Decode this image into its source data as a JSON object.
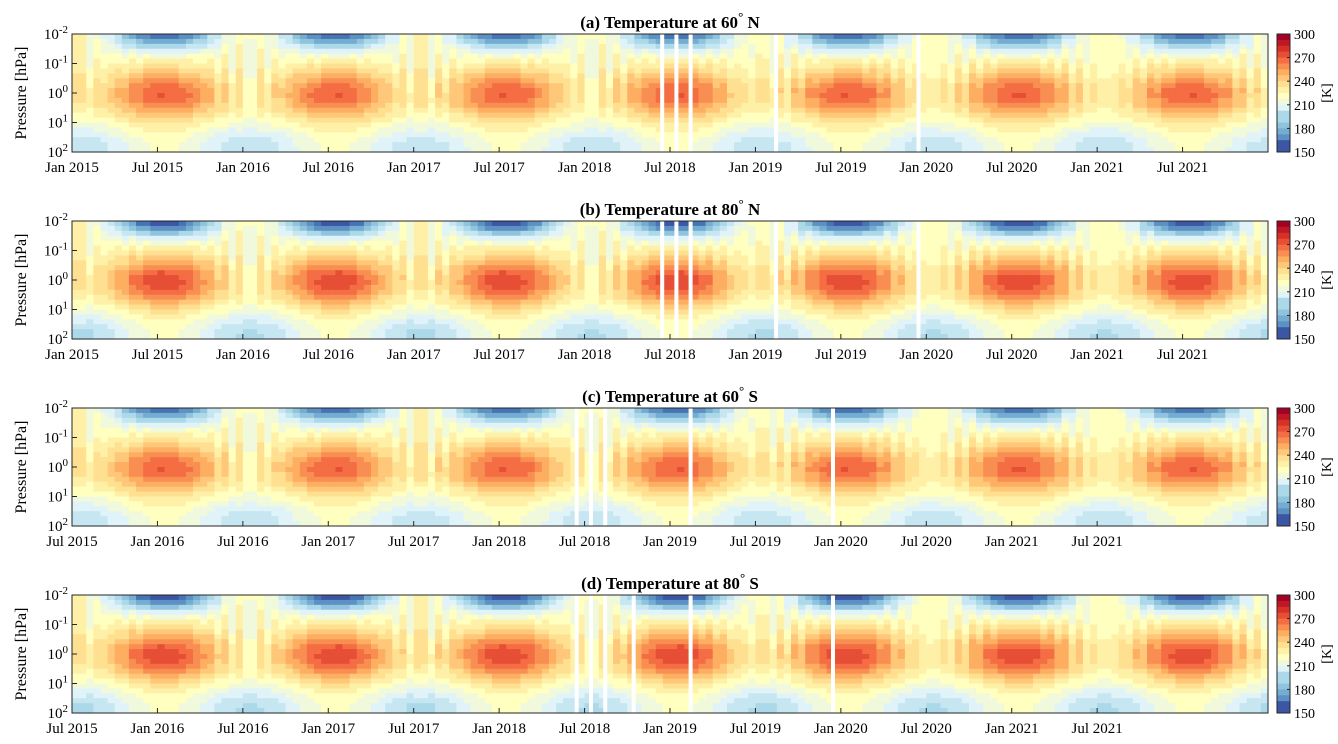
{
  "figure": {
    "colormap": [
      "#313695",
      "#4575b4",
      "#74add1",
      "#abd9e9",
      "#e0f3f8",
      "#ffffbf",
      "#fee090",
      "#fdae61",
      "#f46d43",
      "#d73027",
      "#a50026"
    ],
    "gap_color": "#ffffff"
  },
  "chart_data": [
    {
      "type": "heatmap",
      "panel": "a",
      "title": "(a) Temperature at 60° N",
      "title_parts": [
        "(a) Temperature at 60",
        "°",
        " N"
      ],
      "ylabel": "Pressure [hPa]",
      "yscale": "log",
      "yticks": [
        {
          "base": "10",
          "exp": "-2",
          "value": 0.01
        },
        {
          "base": "10",
          "exp": "-1",
          "value": 0.1
        },
        {
          "base": "10",
          "exp": "0",
          "value": 1
        },
        {
          "base": "10",
          "exp": "1",
          "value": 10
        },
        {
          "base": "10",
          "exp": "2",
          "value": 100
        }
      ],
      "x_start": "Jan 2015",
      "x_end": "Dec 2021",
      "xticks": [
        "Jan 2015",
        "Jul 2015",
        "Jan 2016",
        "Jul 2016",
        "Jan 2017",
        "Jul 2017",
        "Jan 2018",
        "Jul 2018",
        "Jan 2019",
        "Jul 2019",
        "Jan 2020",
        "Jul 2020",
        "Jan 2021",
        "Jul 2021"
      ],
      "colorbar": {
        "label": "[K]",
        "ticks": [
          "300",
          "270",
          "240",
          "210",
          "180",
          "150"
        ],
        "range": [
          150,
          300
        ]
      },
      "hemisphere": "north",
      "latitude": 60,
      "summer_peak_months": [
        "Jul 2015",
        "Jul 2016",
        "Jul 2017",
        "Jul 2018",
        "Jul 2019",
        "Jul 2020",
        "Jul 2021"
      ],
      "values_estimated": {
        "stratopause_summer_max_K": 275,
        "mesosphere_summer_min_K": 160,
        "lower_stratosphere_winter_min_K": 205
      },
      "data_gaps": [
        "Jun 2018",
        "Jul 2018",
        "Aug 2018",
        "Feb 2019",
        "Dec 2019"
      ]
    },
    {
      "type": "heatmap",
      "panel": "b",
      "title": "(b) Temperature at 80° N",
      "title_parts": [
        "(b) Temperature at 80",
        "°",
        " N"
      ],
      "ylabel": "Pressure [hPa]",
      "yscale": "log",
      "yticks": [
        {
          "base": "10",
          "exp": "-2",
          "value": 0.01
        },
        {
          "base": "10",
          "exp": "-1",
          "value": 0.1
        },
        {
          "base": "10",
          "exp": "0",
          "value": 1
        },
        {
          "base": "10",
          "exp": "1",
          "value": 10
        },
        {
          "base": "10",
          "exp": "2",
          "value": 100
        }
      ],
      "x_start": "Jan 2015",
      "x_end": "Dec 2021",
      "xticks": [
        "Jan 2015",
        "Jul 2015",
        "Jan 2016",
        "Jul 2016",
        "Jan 2017",
        "Jul 2017",
        "Jan 2018",
        "Jul 2018",
        "Jan 2019",
        "Jul 2019",
        "Jan 2020",
        "Jul 2020",
        "Jan 2021",
        "Jul 2021"
      ],
      "colorbar": {
        "label": "[K]",
        "ticks": [
          "300",
          "270",
          "240",
          "210",
          "180",
          "150"
        ],
        "range": [
          150,
          300
        ]
      },
      "hemisphere": "north",
      "latitude": 80,
      "summer_peak_months": [
        "Jul 2015",
        "Jul 2016",
        "Jul 2017",
        "Jul 2018",
        "Jul 2019",
        "Jul 2020",
        "Jul 2021"
      ],
      "values_estimated": {
        "stratopause_summer_max_K": 285,
        "mesosphere_summer_min_K": 150,
        "lower_stratosphere_winter_min_K": 195
      },
      "data_gaps": [
        "Jun 2018",
        "Jul 2018",
        "Aug 2018",
        "Feb 2019",
        "Dec 2019"
      ]
    },
    {
      "type": "heatmap",
      "panel": "c",
      "title": "(c) Temperature at 60° S",
      "title_parts": [
        "(c) Temperature at 60",
        "°",
        " S"
      ],
      "ylabel": "Pressure [hPa]",
      "yscale": "log",
      "yticks": [
        {
          "base": "10",
          "exp": "-2",
          "value": 0.01
        },
        {
          "base": "10",
          "exp": "-1",
          "value": 0.1
        },
        {
          "base": "10",
          "exp": "0",
          "value": 1
        },
        {
          "base": "10",
          "exp": "1",
          "value": 10
        },
        {
          "base": "10",
          "exp": "2",
          "value": 100
        }
      ],
      "x_start": "Jul 2015",
      "x_end": "Jun 2022",
      "xticks": [
        "Jul 2015",
        "Jan 2016",
        "Jul 2016",
        "Jan 2017",
        "Jul 2017",
        "Jan 2018",
        "Jul 2018",
        "Jan 2019",
        "Jul 2019",
        "Jan 2020",
        "Jul 2020",
        "Jan 2021",
        "Jul 2021"
      ],
      "colorbar": {
        "label": "[K]",
        "ticks": [
          "300",
          "270",
          "240",
          "210",
          "180",
          "150"
        ],
        "range": [
          150,
          300
        ]
      },
      "hemisphere": "south",
      "latitude": -60,
      "summer_peak_months": [
        "Jan 2016",
        "Jan 2017",
        "Jan 2018",
        "Jan 2019",
        "Jan 2020",
        "Jan 2021",
        "Jan 2022"
      ],
      "values_estimated": {
        "stratopause_summer_max_K": 275,
        "mesosphere_summer_min_K": 160,
        "lower_stratosphere_winter_min_K": 200
      },
      "data_gaps": [
        "Jun 2018",
        "Jul 2018",
        "Aug 2018",
        "Feb 2019",
        "Dec 2019"
      ]
    },
    {
      "type": "heatmap",
      "panel": "d",
      "title": "(d) Temperature at 80° S",
      "title_parts": [
        "(d) Temperature at 80",
        "°",
        " S"
      ],
      "ylabel": "Pressure [hPa]",
      "yscale": "log",
      "yticks": [
        {
          "base": "10",
          "exp": "-2",
          "value": 0.01
        },
        {
          "base": "10",
          "exp": "-1",
          "value": 0.1
        },
        {
          "base": "10",
          "exp": "0",
          "value": 1
        },
        {
          "base": "10",
          "exp": "1",
          "value": 10
        },
        {
          "base": "10",
          "exp": "2",
          "value": 100
        }
      ],
      "x_start": "Jul 2015",
      "x_end": "Jun 2022",
      "xticks": [
        "Jul 2015",
        "Jan 2016",
        "Jul 2016",
        "Jan 2017",
        "Jul 2017",
        "Jan 2018",
        "Jul 2018",
        "Jan 2019",
        "Jul 2019",
        "Jan 2020",
        "Jul 2020",
        "Jan 2021",
        "Jul 2021"
      ],
      "colorbar": {
        "label": "[K]",
        "ticks": [
          "300",
          "270",
          "240",
          "210",
          "180",
          "150"
        ],
        "range": [
          150,
          300
        ]
      },
      "hemisphere": "south",
      "latitude": -80,
      "summer_peak_months": [
        "Jan 2016",
        "Jan 2017",
        "Jan 2018",
        "Jan 2019",
        "Jan 2020",
        "Jan 2021",
        "Jan 2022"
      ],
      "values_estimated": {
        "stratopause_summer_max_K": 290,
        "mesosphere_summer_min_K": 150,
        "lower_stratosphere_winter_min_K": 185
      },
      "data_gaps": [
        "Jun 2018",
        "Jul 2018",
        "Aug 2018",
        "Oct 2018",
        "Feb 2019",
        "Dec 2019"
      ]
    }
  ]
}
